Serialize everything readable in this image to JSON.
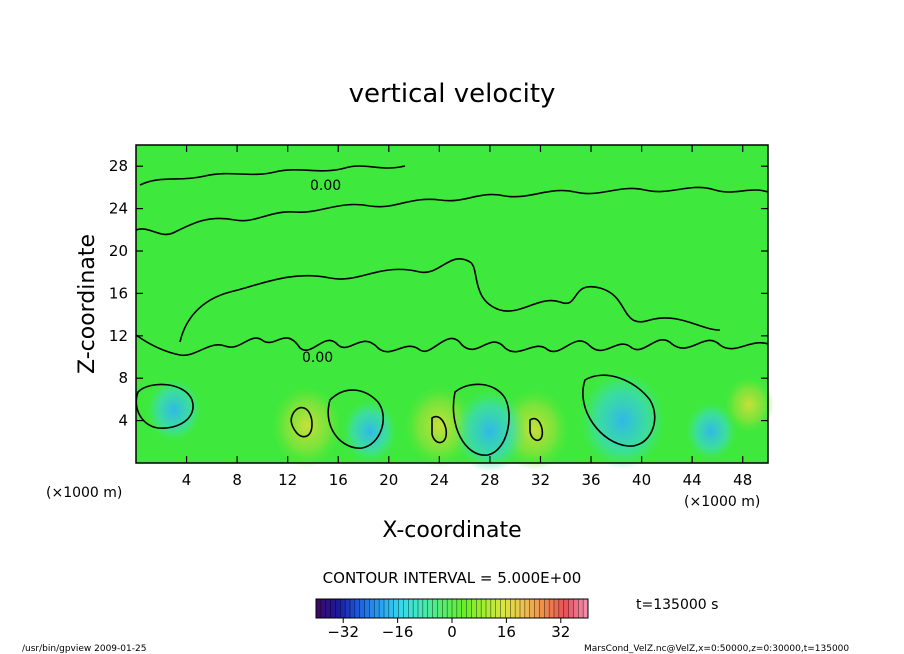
{
  "chart_data": {
    "type": "heatmap",
    "title": "vertical velocity",
    "xlabel": "X-coordinate",
    "ylabel": "Z-coordinate",
    "x_unit": "(×1000 m)",
    "xlim": [
      0,
      50
    ],
    "ylim": [
      0,
      30
    ],
    "x_ticks": [
      4,
      8,
      12,
      16,
      20,
      24,
      28,
      32,
      36,
      40,
      44,
      48
    ],
    "y_ticks": [
      4,
      8,
      12,
      16,
      20,
      24,
      28
    ],
    "contour_interval_text": "CONTOUR INTERVAL = 5.000E+00",
    "zero_contour_label": "0.00",
    "time_label": "t=135000 s",
    "colorbar": {
      "range": [
        -40,
        40
      ],
      "ticks": [
        -32,
        -16,
        0,
        16,
        32
      ],
      "colors": [
        "#3a0a6a",
        "#1a1aa0",
        "#1f5fe0",
        "#2aa0ef",
        "#34d8ec",
        "#46e8b8",
        "#56ee72",
        "#64ee2e",
        "#a0ec30",
        "#d8e640",
        "#eec050",
        "#ee8a4a",
        "#e8505a",
        "#f08ca8"
      ]
    },
    "features": [
      {
        "x": 13.5,
        "z": 3.5,
        "w": 9.0,
        "sign": "positive"
      },
      {
        "x": 24.0,
        "z": 3.5,
        "w": 9.0,
        "sign": "positive"
      },
      {
        "x": 31.5,
        "z": 3.2,
        "w": 9.0,
        "sign": "positive"
      },
      {
        "x": 48.5,
        "z": 5.5,
        "w": 4.0,
        "sign": "positive"
      },
      {
        "x": 3.0,
        "z": 5.0,
        "w": -5.0,
        "sign": "negative"
      },
      {
        "x": 18.5,
        "z": 3.0,
        "w": -5.0,
        "sign": "negative"
      },
      {
        "x": 28.0,
        "z": 3.0,
        "w": -9.0,
        "sign": "negative"
      },
      {
        "x": 38.5,
        "z": 4.0,
        "w": -12.0,
        "sign": "negative"
      },
      {
        "x": 45.5,
        "z": 3.0,
        "w": -4.0,
        "sign": "negative"
      }
    ]
  },
  "footer": {
    "left": "/usr/bin/gpview  2009-01-25",
    "right": "MarsCond_VelZ.nc@VelZ,x=0:50000,z=0:30000,t=135000"
  }
}
